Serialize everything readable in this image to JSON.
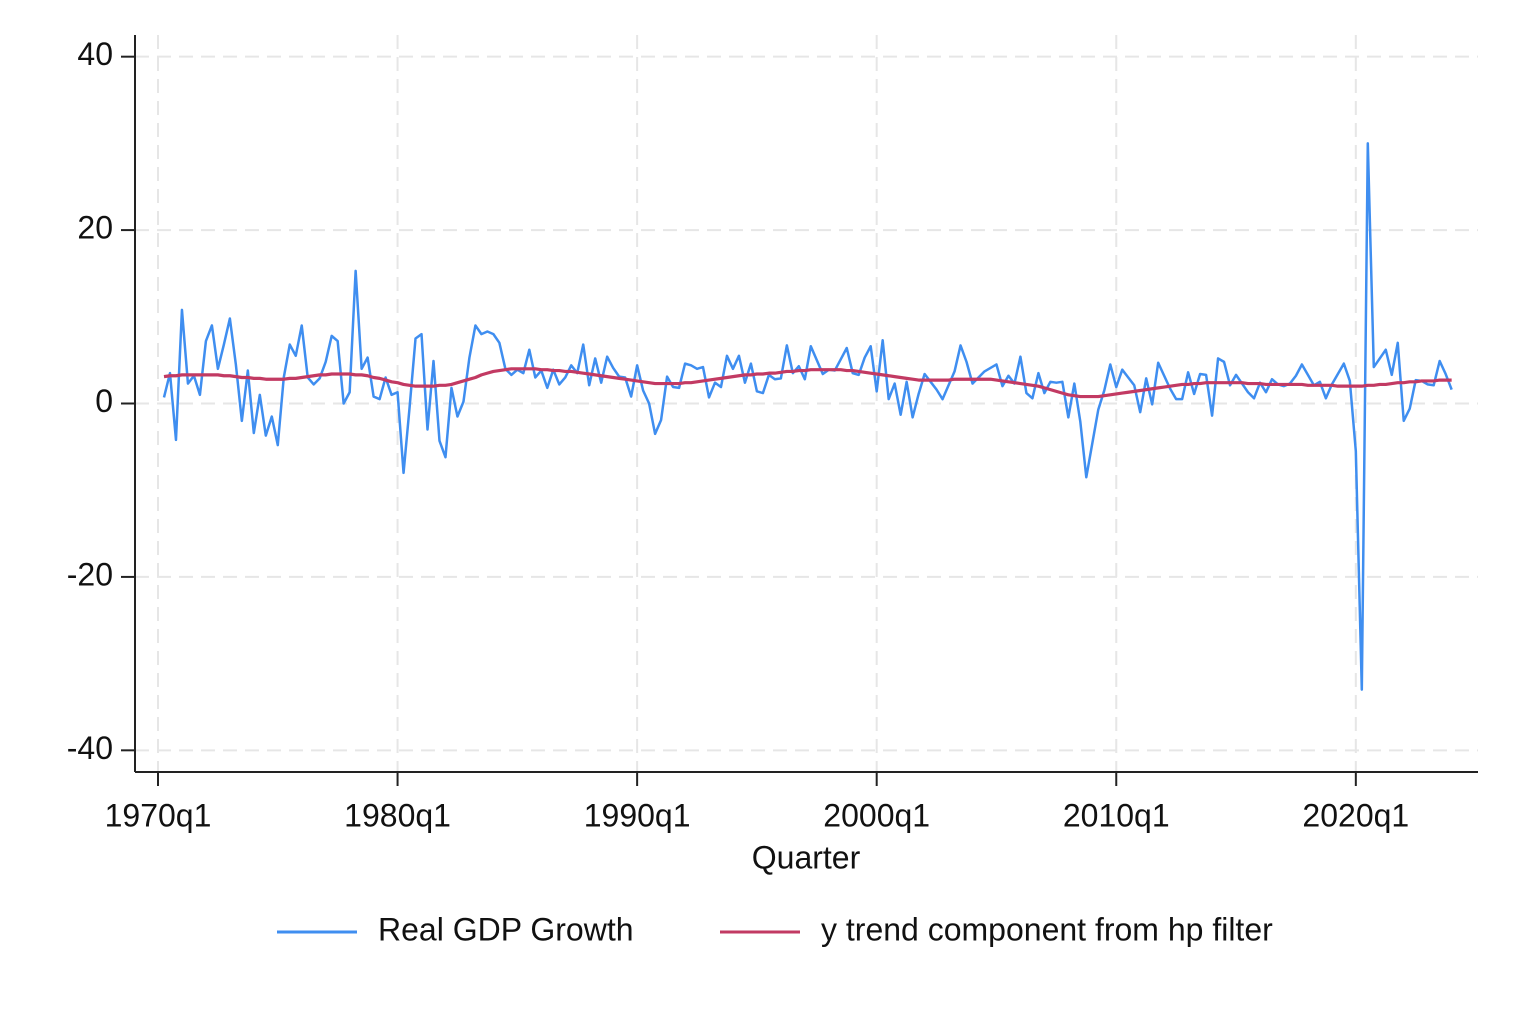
{
  "chart_data": {
    "type": "line",
    "xlabel": "Quarter",
    "x": [
      1970.25,
      1970.5,
      1970.75,
      1971,
      1971.25,
      1971.5,
      1971.75,
      1972,
      1972.25,
      1972.5,
      1972.75,
      1973,
      1973.25,
      1973.5,
      1973.75,
      1974,
      1974.25,
      1974.5,
      1974.75,
      1975,
      1975.25,
      1975.5,
      1975.75,
      1976,
      1976.25,
      1976.5,
      1976.75,
      1977,
      1977.25,
      1977.5,
      1977.75,
      1978,
      1978.25,
      1978.5,
      1978.75,
      1979,
      1979.25,
      1979.5,
      1979.75,
      1980,
      1980.25,
      1980.5,
      1980.75,
      1981,
      1981.25,
      1981.5,
      1981.75,
      1982,
      1982.25,
      1982.5,
      1982.75,
      1983,
      1983.25,
      1983.5,
      1983.75,
      1984,
      1984.25,
      1984.5,
      1984.75,
      1985,
      1985.25,
      1985.5,
      1985.75,
      1986,
      1986.25,
      1986.5,
      1986.75,
      1987,
      1987.25,
      1987.5,
      1987.75,
      1988,
      1988.25,
      1988.5,
      1988.75,
      1989,
      1989.25,
      1989.5,
      1989.75,
      1990,
      1990.25,
      1990.5,
      1990.75,
      1991,
      1991.25,
      1991.5,
      1991.75,
      1992,
      1992.25,
      1992.5,
      1992.75,
      1993,
      1993.25,
      1993.5,
      1993.75,
      1994,
      1994.25,
      1994.5,
      1994.75,
      1995,
      1995.25,
      1995.5,
      1995.75,
      1996,
      1996.25,
      1996.5,
      1996.75,
      1997,
      1997.25,
      1997.5,
      1997.75,
      1998,
      1998.25,
      1998.5,
      1998.75,
      1999,
      1999.25,
      1999.5,
      1999.75,
      2000,
      2000.25,
      2000.5,
      2000.75,
      2001,
      2001.25,
      2001.5,
      2001.75,
      2002,
      2002.25,
      2002.5,
      2002.75,
      2003,
      2003.25,
      2003.5,
      2003.75,
      2004,
      2004.25,
      2004.5,
      2004.75,
      2005,
      2005.25,
      2005.5,
      2005.75,
      2006,
      2006.25,
      2006.5,
      2006.75,
      2007,
      2007.25,
      2007.5,
      2007.75,
      2008,
      2008.25,
      2008.5,
      2008.75,
      2009,
      2009.25,
      2009.5,
      2009.75,
      2010,
      2010.25,
      2010.5,
      2010.75,
      2011,
      2011.25,
      2011.5,
      2011.75,
      2012,
      2012.25,
      2012.5,
      2012.75,
      2013,
      2013.25,
      2013.5,
      2013.75,
      2014,
      2014.25,
      2014.5,
      2014.75,
      2015,
      2015.25,
      2015.5,
      2015.75,
      2016,
      2016.25,
      2016.5,
      2016.75,
      2017,
      2017.25,
      2017.5,
      2017.75,
      2018,
      2018.25,
      2018.5,
      2018.75,
      2019,
      2019.25,
      2019.5,
      2019.75,
      2020,
      2020.25,
      2020.5,
      2020.75,
      2021,
      2021.25,
      2021.5,
      2021.75,
      2022,
      2022.25,
      2022.5,
      2022.75,
      2023,
      2023.25,
      2023.5,
      2023.75,
      2024
    ],
    "series": [
      {
        "name": "Real GDP Growth",
        "color": "#3f8ef0",
        "values": [
          0.7,
          3.5,
          -4.2,
          10.8,
          2.3,
          3.2,
          1.0,
          7.2,
          9.0,
          4.0,
          6.8,
          9.8,
          4.5,
          -2.0,
          3.8,
          -3.4,
          1.0,
          -3.7,
          -1.5,
          -4.8,
          3.0,
          6.8,
          5.5,
          9.0,
          3.0,
          2.2,
          2.9,
          4.8,
          7.8,
          7.2,
          0.0,
          1.3,
          15.3,
          4.0,
          5.3,
          0.8,
          0.5,
          3.0,
          1.0,
          1.3,
          -8.0,
          -0.5,
          7.5,
          8.0,
          -3.0,
          4.9,
          -4.3,
          -6.2,
          1.8,
          -1.5,
          0.2,
          5.3,
          9.0,
          8.0,
          8.3,
          8.0,
          7.0,
          4.0,
          3.3,
          3.9,
          3.5,
          6.2,
          3.0,
          3.8,
          1.8,
          3.9,
          2.2,
          3.0,
          4.4,
          3.5,
          6.8,
          2.1,
          5.2,
          2.4,
          5.4,
          4.1,
          3.1,
          3.0,
          0.8,
          4.4,
          1.5,
          0.0,
          -3.5,
          -1.9,
          3.1,
          1.9,
          1.8,
          4.6,
          4.4,
          4.0,
          4.2,
          0.7,
          2.4,
          1.9,
          5.5,
          4.0,
          5.5,
          2.4,
          4.6,
          1.4,
          1.2,
          3.3,
          2.8,
          2.9,
          6.7,
          3.5,
          4.3,
          2.8,
          6.6,
          5.0,
          3.4,
          3.9,
          3.8,
          5.1,
          6.4,
          3.5,
          3.3,
          5.3,
          6.6,
          1.4,
          7.3,
          0.5,
          2.3,
          -1.3,
          2.5,
          -1.6,
          1.1,
          3.4,
          2.5,
          1.6,
          0.5,
          2.1,
          3.7,
          6.7,
          4.8,
          2.3,
          3.0,
          3.7,
          4.1,
          4.5,
          2.0,
          3.2,
          2.3,
          5.4,
          1.2,
          0.6,
          3.5,
          1.2,
          2.5,
          2.4,
          2.5,
          -1.6,
          2.3,
          -2.1,
          -8.5,
          -4.6,
          -0.7,
          1.5,
          4.5,
          1.9,
          3.9,
          3.0,
          2.1,
          -1.0,
          2.9,
          -0.1,
          4.7,
          3.2,
          1.7,
          0.5,
          0.5,
          3.6,
          1.1,
          3.4,
          3.3,
          -1.4,
          5.2,
          4.8,
          2.1,
          3.3,
          2.3,
          1.3,
          0.6,
          2.4,
          1.3,
          2.8,
          2.2,
          2.0,
          2.3,
          3.2,
          4.5,
          3.3,
          2.1,
          2.5,
          0.6,
          2.2,
          3.4,
          4.6,
          2.6,
          -5.5,
          -33.0,
          30.0,
          4.2,
          5.2,
          6.2,
          3.3,
          7.0,
          -2.0,
          -0.6,
          2.7,
          2.6,
          2.2,
          2.1,
          4.9,
          3.4,
          1.6
        ]
      },
      {
        "name": "y trend component from hp filter",
        "color": "#c23a63",
        "values": [
          3.1,
          3.2,
          3.2,
          3.3,
          3.3,
          3.3,
          3.3,
          3.3,
          3.3,
          3.3,
          3.2,
          3.2,
          3.1,
          3.0,
          3.0,
          2.9,
          2.9,
          2.8,
          2.8,
          2.8,
          2.8,
          2.9,
          2.9,
          3.0,
          3.1,
          3.2,
          3.3,
          3.3,
          3.4,
          3.4,
          3.4,
          3.4,
          3.3,
          3.3,
          3.2,
          3.0,
          2.9,
          2.7,
          2.5,
          2.4,
          2.2,
          2.1,
          2.0,
          2.0,
          2.0,
          2.0,
          2.1,
          2.1,
          2.2,
          2.4,
          2.6,
          2.8,
          3.0,
          3.3,
          3.5,
          3.7,
          3.8,
          3.9,
          4.0,
          4.0,
          4.0,
          4.0,
          4.0,
          3.9,
          3.9,
          3.8,
          3.8,
          3.7,
          3.7,
          3.6,
          3.5,
          3.4,
          3.3,
          3.2,
          3.1,
          3.0,
          2.9,
          2.8,
          2.7,
          2.6,
          2.5,
          2.4,
          2.3,
          2.3,
          2.3,
          2.3,
          2.3,
          2.4,
          2.4,
          2.5,
          2.6,
          2.7,
          2.8,
          2.9,
          3.0,
          3.1,
          3.2,
          3.3,
          3.3,
          3.4,
          3.4,
          3.5,
          3.5,
          3.6,
          3.7,
          3.7,
          3.8,
          3.8,
          3.9,
          3.9,
          3.9,
          3.9,
          3.9,
          3.9,
          3.8,
          3.8,
          3.7,
          3.6,
          3.5,
          3.4,
          3.3,
          3.2,
          3.1,
          3.0,
          2.9,
          2.8,
          2.7,
          2.7,
          2.7,
          2.7,
          2.7,
          2.7,
          2.8,
          2.8,
          2.8,
          2.8,
          2.8,
          2.8,
          2.8,
          2.7,
          2.6,
          2.5,
          2.4,
          2.3,
          2.2,
          2.1,
          2.0,
          1.8,
          1.6,
          1.4,
          1.2,
          1.0,
          0.9,
          0.8,
          0.8,
          0.8,
          0.8,
          0.9,
          1.0,
          1.1,
          1.2,
          1.3,
          1.4,
          1.5,
          1.6,
          1.7,
          1.8,
          1.9,
          2.0,
          2.1,
          2.2,
          2.2,
          2.3,
          2.3,
          2.4,
          2.4,
          2.4,
          2.4,
          2.4,
          2.4,
          2.4,
          2.3,
          2.3,
          2.3,
          2.2,
          2.2,
          2.2,
          2.2,
          2.2,
          2.2,
          2.2,
          2.1,
          2.1,
          2.1,
          2.1,
          2.1,
          2.0,
          2.0,
          2.0,
          2.0,
          2.0,
          2.1,
          2.1,
          2.2,
          2.2,
          2.3,
          2.4,
          2.4,
          2.5,
          2.5,
          2.6,
          2.6,
          2.6,
          2.7,
          2.7,
          2.7
        ]
      }
    ],
    "xlim": [
      1969.04,
      2025.1
    ],
    "ylim": [
      -42.5,
      42.5
    ],
    "xticks": [
      {
        "value": 1970,
        "label": "1970q1"
      },
      {
        "value": 1980,
        "label": "1980q1"
      },
      {
        "value": 1990,
        "label": "1990q1"
      },
      {
        "value": 2000,
        "label": "2000q1"
      },
      {
        "value": 2010,
        "label": "2010q1"
      },
      {
        "value": 2020,
        "label": "2020q1"
      }
    ],
    "yticks": [
      -40,
      -20,
      0,
      20,
      40
    ],
    "grid": true,
    "legend": "bottom"
  }
}
